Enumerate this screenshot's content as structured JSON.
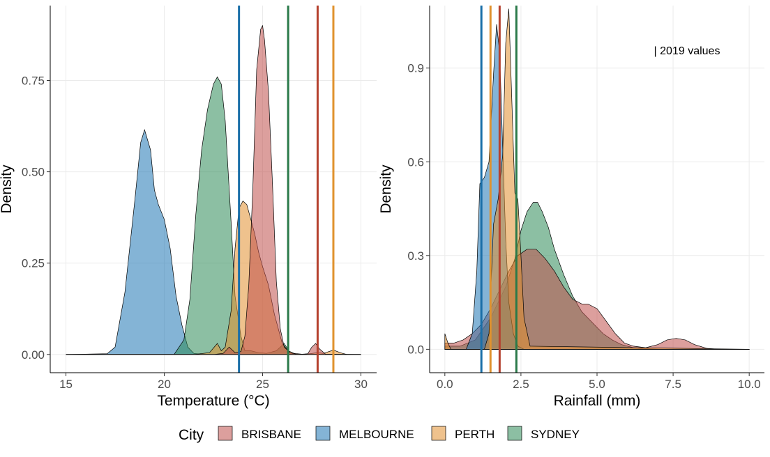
{
  "colors": {
    "BRISBANE": "#C0504D",
    "MELBOURNE": "#1F77B4",
    "PERTH": "#E28F2F",
    "SYDNEY": "#2E8B57",
    "BRISBANE_line": "#B5422F",
    "MELBOURNE_line": "#1A6FA8",
    "PERTH_line": "#E0922E",
    "SYDNEY_line": "#2A7A4A"
  },
  "chart_data": [
    {
      "type": "area",
      "xlabel": "Temperature (°C)",
      "ylabel": "Density",
      "xlim": [
        14.2,
        30.8
      ],
      "ylim": [
        -0.05,
        0.955
      ],
      "xticks": [
        15,
        20,
        25,
        30
      ],
      "xtick_labels": [
        "15",
        "20",
        "25",
        "30"
      ],
      "yticks": [
        0,
        0.25,
        0.5,
        0.75
      ],
      "ytick_labels": [
        "0.00",
        "0.25",
        "0.50",
        "0.75"
      ],
      "grid": true,
      "series": [
        {
          "name": "MELBOURNE",
          "x": [
            15,
            17.1,
            17.5,
            18.0,
            18.5,
            18.8,
            19.0,
            19.3,
            19.5,
            19.7,
            20.0,
            20.3,
            20.6,
            20.9,
            21.2,
            21.5,
            22.0,
            23.0,
            24.0,
            25.0,
            26.0,
            28.0,
            30.0
          ],
          "y": [
            0,
            0.002,
            0.02,
            0.17,
            0.42,
            0.58,
            0.615,
            0.56,
            0.45,
            0.41,
            0.37,
            0.29,
            0.16,
            0.08,
            0.02,
            0.003,
            0,
            0,
            0,
            0,
            0,
            0,
            0
          ]
        },
        {
          "name": "SYDNEY",
          "x": [
            15,
            20.5,
            21.0,
            21.3,
            21.6,
            21.9,
            22.2,
            22.5,
            22.7,
            22.9,
            23.1,
            23.4,
            23.6,
            23.9,
            24.1,
            24.4,
            24.8,
            25.2,
            25.7,
            26.1,
            26.4,
            26.7,
            27.0,
            30.0
          ],
          "y": [
            0,
            0,
            0.04,
            0.15,
            0.38,
            0.56,
            0.67,
            0.74,
            0.76,
            0.74,
            0.64,
            0.36,
            0.16,
            0.05,
            0.01,
            0.01,
            0.005,
            0.003,
            0.01,
            0.03,
            0.004,
            0,
            0,
            0
          ]
        },
        {
          "name": "PERTH",
          "x": [
            15,
            21.5,
            22.3,
            22.7,
            22.9,
            23.1,
            23.4,
            23.6,
            23.8,
            24.0,
            24.2,
            24.4,
            24.6,
            24.8,
            25.0,
            25.3,
            25.6,
            26.0,
            26.3,
            26.6,
            27.0,
            27.4,
            27.8,
            28.1,
            28.6,
            29.0,
            29.3,
            30.0
          ],
          "y": [
            0,
            0,
            0.005,
            0.03,
            0.01,
            0.02,
            0.12,
            0.29,
            0.4,
            0.42,
            0.41,
            0.37,
            0.33,
            0.28,
            0.24,
            0.19,
            0.11,
            0.03,
            0.01,
            0.003,
            0.001,
            0.002,
            0.005,
            0.003,
            0.012,
            0.004,
            0,
            0
          ]
        },
        {
          "name": "BRISBANE",
          "x": [
            15,
            22.5,
            23.0,
            23.3,
            23.6,
            23.9,
            24.1,
            24.3,
            24.5,
            24.7,
            24.9,
            25.0,
            25.1,
            25.3,
            25.5,
            25.7,
            25.9,
            26.1,
            26.4,
            26.7,
            27.0,
            27.3,
            27.5,
            27.7,
            27.9,
            28.2,
            30.0
          ],
          "y": [
            0,
            0,
            0.003,
            0.02,
            0.005,
            0.008,
            0.05,
            0.19,
            0.45,
            0.78,
            0.89,
            0.9,
            0.86,
            0.72,
            0.47,
            0.2,
            0.07,
            0.02,
            0.005,
            0.001,
            0,
            0.002,
            0.02,
            0.03,
            0.015,
            0.001,
            0
          ]
        }
      ],
      "vlines": [
        {
          "name": "MELBOURNE",
          "x": 23.8
        },
        {
          "name": "SYDNEY",
          "x": 26.3
        },
        {
          "name": "BRISBANE",
          "x": 27.8
        },
        {
          "name": "PERTH",
          "x": 28.6
        }
      ]
    },
    {
      "type": "area",
      "xlabel": "Rainfall (mm)",
      "ylabel": "Density",
      "xlim": [
        -0.5,
        10.5
      ],
      "ylim": [
        -0.075,
        1.1
      ],
      "xticks": [
        0,
        2.5,
        5,
        7.5,
        10
      ],
      "xtick_labels": [
        "0.0",
        "2.5",
        "5.0",
        "7.5",
        "10.0"
      ],
      "yticks": [
        0,
        0.3,
        0.6,
        0.9
      ],
      "ytick_labels": [
        "0.0",
        "0.3",
        "0.6",
        "0.9"
      ],
      "grid": true,
      "annotation": "| 2019 values",
      "series": [
        {
          "name": "SYDNEY",
          "x": [
            0,
            0.5,
            1.0,
            1.5,
            2.0,
            2.3,
            2.5,
            2.7,
            2.9,
            3.05,
            3.2,
            3.4,
            3.6,
            3.9,
            4.2,
            4.5,
            4.8,
            5.0,
            5.2,
            5.5,
            5.8,
            6.2,
            6.5,
            7.0,
            10.0
          ],
          "y": [
            0.01,
            0.01,
            0.03,
            0.1,
            0.2,
            0.29,
            0.38,
            0.44,
            0.47,
            0.47,
            0.44,
            0.39,
            0.32,
            0.24,
            0.17,
            0.12,
            0.09,
            0.07,
            0.05,
            0.03,
            0.015,
            0.005,
            0.002,
            0,
            0
          ]
        },
        {
          "name": "BRISBANE",
          "x": [
            0,
            0.3,
            0.6,
            0.9,
            1.2,
            1.5,
            1.8,
            2.1,
            2.4,
            2.7,
            3.0,
            3.3,
            3.6,
            3.9,
            4.2,
            4.5,
            4.7,
            5.0,
            5.3,
            5.6,
            5.9,
            6.2,
            6.6,
            7.0,
            7.3,
            7.6,
            7.9,
            8.2,
            8.6,
            9.0,
            10.0
          ],
          "y": [
            0.02,
            0.02,
            0.03,
            0.05,
            0.08,
            0.13,
            0.19,
            0.25,
            0.3,
            0.32,
            0.32,
            0.29,
            0.25,
            0.2,
            0.16,
            0.145,
            0.145,
            0.13,
            0.09,
            0.05,
            0.02,
            0.01,
            0.005,
            0.015,
            0.03,
            0.035,
            0.03,
            0.015,
            0.003,
            0,
            0
          ]
        },
        {
          "name": "MELBOURNE",
          "x": [
            0,
            0.7,
            0.9,
            1.05,
            1.15,
            1.3,
            1.45,
            1.6,
            1.7,
            1.8,
            1.9,
            2.0,
            2.1,
            2.25,
            2.4,
            2.6,
            3.0,
            10.0
          ],
          "y": [
            0,
            0,
            0.05,
            0.25,
            0.53,
            0.55,
            0.6,
            0.88,
            1.04,
            0.95,
            0.65,
            0.35,
            0.15,
            0.05,
            0.01,
            0,
            0,
            0
          ]
        },
        {
          "name": "PERTH",
          "x": [
            0,
            0.1,
            0.2,
            1.3,
            1.45,
            1.6,
            1.75,
            1.9,
            2.0,
            2.1,
            2.2,
            2.3,
            2.4,
            2.5,
            2.6,
            2.8,
            10.0
          ],
          "y": [
            0.05,
            0.02,
            0,
            0,
            0.05,
            0.4,
            0.48,
            0.62,
            0.98,
            1.09,
            0.8,
            0.5,
            0.48,
            0.3,
            0.1,
            0.01,
            0
          ]
        }
      ],
      "vlines": [
        {
          "name": "MELBOURNE",
          "x": 1.2
        },
        {
          "name": "PERTH",
          "x": 1.5
        },
        {
          "name": "BRISBANE",
          "x": 1.8
        },
        {
          "name": "SYDNEY",
          "x": 2.35
        }
      ]
    }
  ],
  "legend": {
    "title": "City",
    "items": [
      "BRISBANE",
      "MELBOURNE",
      "PERTH",
      "SYDNEY"
    ],
    "position": "bottom"
  }
}
